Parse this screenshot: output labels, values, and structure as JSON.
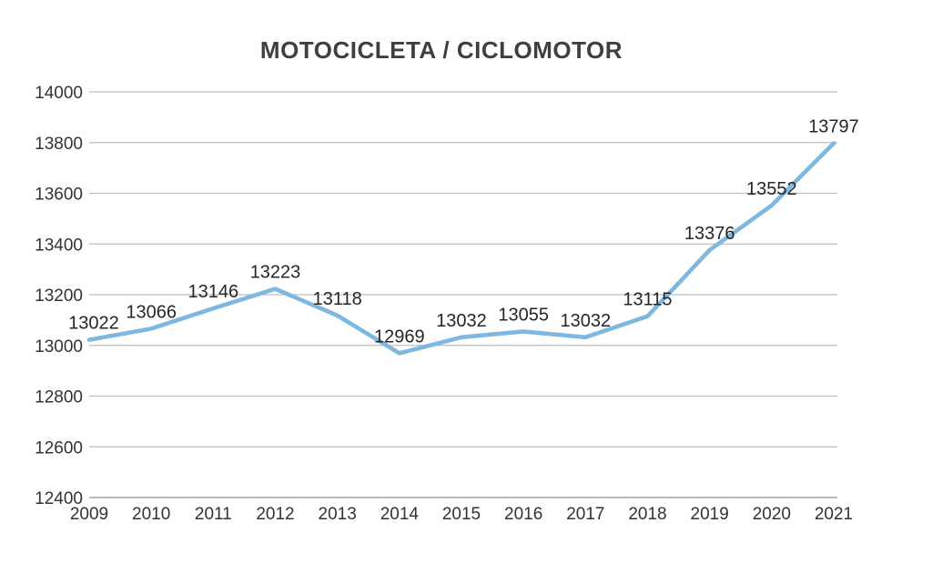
{
  "title": "MOTOCICLETA / CICLOMOTOR",
  "chart_data": {
    "type": "line",
    "title": "MOTOCICLETA / CICLOMOTOR",
    "categories": [
      "2009",
      "2010",
      "2011",
      "2012",
      "2013",
      "2014",
      "2015",
      "2016",
      "2017",
      "2018",
      "2019",
      "2020",
      "2021"
    ],
    "values": [
      13022,
      13066,
      13146,
      13223,
      13118,
      12969,
      13032,
      13055,
      13032,
      13115,
      13376,
      13552,
      13797
    ],
    "xlabel": "",
    "ylabel": "",
    "ylim": [
      12400,
      14000
    ],
    "ytick_step": 200,
    "ytick_labels": [
      "12400",
      "12600",
      "12800",
      "13000",
      "13200",
      "13400",
      "13600",
      "13800",
      "14000"
    ],
    "grid": true,
    "legend": "none",
    "data_labels_shown": true,
    "line_color": "#7EB7E0",
    "grid_color": "#BFBFBF",
    "axis_line_color": "#A0A0A0",
    "label_color": "#262626",
    "tick_color": "#333333",
    "title_color": "#3F3F3F",
    "background_color": "#FFFFFF"
  }
}
